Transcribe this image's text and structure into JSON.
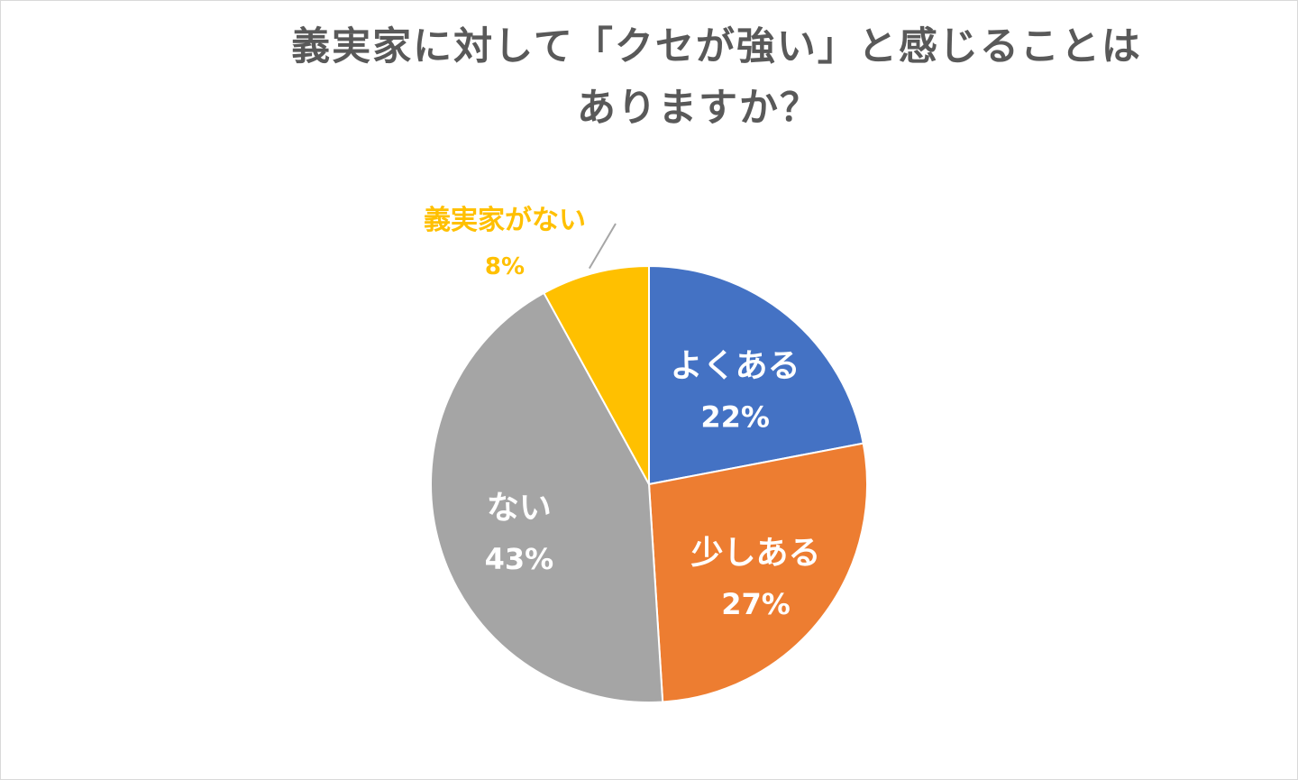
{
  "chart_data": {
    "type": "pie",
    "title_lines": [
      "義実家に対して「クセが強い」と感じることは",
      "ありますか？"
    ],
    "slices": [
      {
        "label": "よくある",
        "value": 22,
        "value_label": "22%",
        "color": "#4472c4",
        "label_color": "#ffffff"
      },
      {
        "label": "少しある",
        "value": 27,
        "value_label": "27%",
        "color": "#ed7d31",
        "label_color": "#ffffff"
      },
      {
        "label": "ない",
        "value": 43,
        "value_label": "43%",
        "color": "#a5a5a5",
        "label_color": "#ffffff"
      },
      {
        "label": "義実家がない",
        "value": 8,
        "value_label": "8%",
        "color": "#ffc000",
        "label_color": "#ffc000"
      }
    ],
    "start_angle_deg": 0,
    "direction": "clockwise"
  }
}
